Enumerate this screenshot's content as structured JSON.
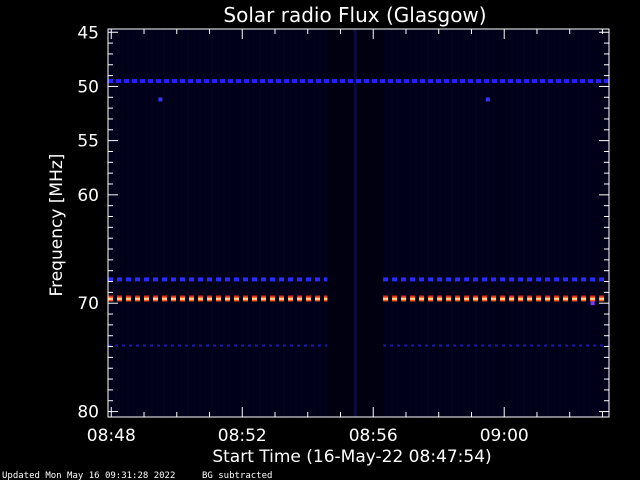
{
  "chart_data": {
    "type": "heatmap",
    "title": "Solar radio Flux (Glasgow)",
    "xlabel": "Start Time (16-May-22 08:47:54)",
    "ylabel": "Frequency [MHz]",
    "x_ticks": [
      "08:48",
      "08:52",
      "08:56",
      "09:00"
    ],
    "x_tick_minutes": [
      0.1,
      4.1,
      8.1,
      12.1
    ],
    "xlim_minutes": [
      0,
      15.3
    ],
    "y_ticks": [
      45,
      50,
      55,
      60,
      70,
      80
    ],
    "y_tick_labels": [
      "45",
      "50",
      "55",
      "60",
      "70",
      "80"
    ],
    "ylim": [
      44.7,
      80.5
    ],
    "y_reversed": true,
    "background_color": "#000018",
    "features": [
      {
        "kind": "dashed",
        "freq_mhz": 49.5,
        "start_min": 0,
        "end_min": 15.3,
        "color": "#2222ff",
        "intensity": "medium"
      },
      {
        "kind": "dashed",
        "freq_mhz": 67.8,
        "start_min": 0,
        "end_min": 6.7,
        "color": "#2a2aff",
        "intensity": "medium"
      },
      {
        "kind": "dashed",
        "freq_mhz": 67.8,
        "start_min": 8.4,
        "end_min": 15.3,
        "color": "#2a2aff",
        "intensity": "medium"
      },
      {
        "kind": "dashed",
        "freq_mhz": 69.6,
        "start_min": 0,
        "end_min": 6.7,
        "color": "#ff5a1a",
        "intensity": "high"
      },
      {
        "kind": "dashed",
        "freq_mhz": 69.6,
        "start_min": 8.4,
        "end_min": 15.3,
        "color": "#ff5a1a",
        "intensity": "high"
      },
      {
        "kind": "dashed",
        "freq_mhz": 73.9,
        "start_min": 0,
        "end_min": 6.7,
        "color": "#1a1aaa",
        "intensity": "low"
      },
      {
        "kind": "dashed",
        "freq_mhz": 73.9,
        "start_min": 8.4,
        "end_min": 15.3,
        "color": "#1a1aaa",
        "intensity": "low"
      },
      {
        "kind": "dot",
        "freq_mhz": 51.2,
        "time_min": 1.6,
        "color": "#3333ff"
      },
      {
        "kind": "dot",
        "freq_mhz": 51.2,
        "time_min": 11.6,
        "color": "#3333ff"
      },
      {
        "kind": "dot",
        "freq_mhz": 70.0,
        "time_min": 14.8,
        "color": "#8833ff"
      }
    ],
    "gap_minutes": [
      6.7,
      8.4
    ],
    "colors": {
      "axes": "#ffffff",
      "text": "#ffffff",
      "frame_bg": "#000000"
    }
  },
  "footer": {
    "updated": "Updated Mon May 16 09:31:28 2022",
    "note": "BG subtracted"
  }
}
